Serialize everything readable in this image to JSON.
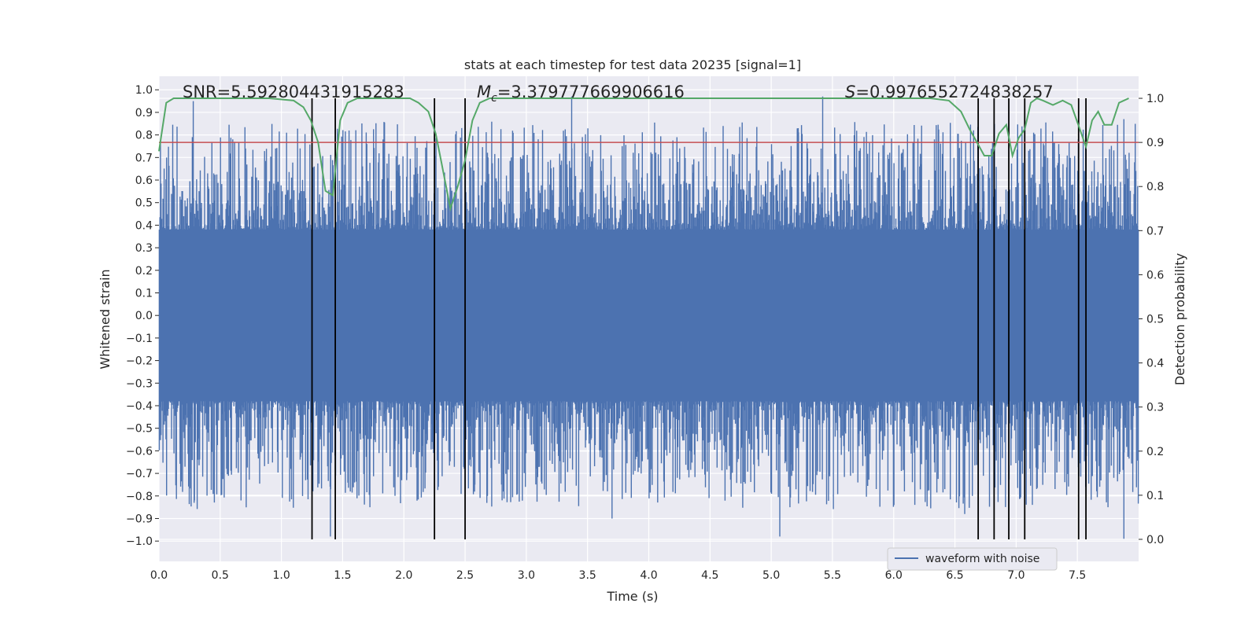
{
  "chart_data": {
    "type": "line",
    "title": "stats at each timestep for test data 20235 [signal=1]",
    "xlabel": "Time (s)",
    "ylabel_left": "Whitened strain",
    "ylabel_right": "Detection probability",
    "xlim": [
      0.0,
      8.0
    ],
    "ylim_left": [
      -1.09,
      1.06
    ],
    "ylim_right": [
      -0.05,
      1.05
    ],
    "x_ticks": [
      "0.0",
      "0.5",
      "1.0",
      "1.5",
      "2.0",
      "2.5",
      "3.0",
      "3.5",
      "4.0",
      "4.5",
      "5.0",
      "5.5",
      "6.0",
      "6.5",
      "7.0",
      "7.5"
    ],
    "y_left_ticks": [
      "1.0",
      "0.9",
      "0.8",
      "0.7",
      "0.6",
      "0.5",
      "0.4",
      "0.3",
      "0.2",
      "0.1",
      "0.0",
      "−0.1",
      "−0.2",
      "−0.3",
      "−0.4",
      "−0.5",
      "−0.6",
      "−0.7",
      "−0.8",
      "−0.9",
      "−1.0"
    ],
    "y_right_ticks": [
      "1.0",
      "0.9",
      "0.8",
      "0.7",
      "0.6",
      "0.5",
      "0.4",
      "0.3",
      "0.2",
      "0.1",
      "0.0"
    ],
    "annotations": {
      "snr": "SNR=5.592804431915283",
      "mc_symbol": "M",
      "mc_sub": "c",
      "mc_value": "=3.379777669906616",
      "s_symbol": "S",
      "s_value": "=0.9976552724838257"
    },
    "legend": [
      "waveform with noise"
    ],
    "threshold": 0.9,
    "event_lines": [
      1.25,
      1.44,
      2.25,
      2.5,
      6.69,
      6.82,
      6.94,
      7.07,
      7.51,
      7.57
    ],
    "detection_probability": {
      "x": [
        0.0,
        0.06,
        0.12,
        0.18,
        0.3,
        0.6,
        0.9,
        1.1,
        1.18,
        1.24,
        1.3,
        1.36,
        1.42,
        1.48,
        1.54,
        1.62,
        1.72,
        1.85,
        2.05,
        2.12,
        2.2,
        2.26,
        2.31,
        2.38,
        2.44,
        2.5,
        2.56,
        2.62,
        2.7,
        2.8,
        3.2,
        3.6,
        4.0,
        4.5,
        5.0,
        5.5,
        6.0,
        6.3,
        6.45,
        6.55,
        6.62,
        6.68,
        6.74,
        6.8,
        6.86,
        6.92,
        6.97,
        7.02,
        7.07,
        7.12,
        7.17,
        7.22,
        7.3,
        7.38,
        7.45,
        7.52,
        7.57,
        7.62,
        7.67,
        7.72,
        7.78,
        7.84,
        7.92
      ],
      "y": [
        0.88,
        0.99,
        1.0,
        1.0,
        1.0,
        1.0,
        1.0,
        0.995,
        0.98,
        0.95,
        0.9,
        0.79,
        0.78,
        0.95,
        0.99,
        1.0,
        1.0,
        1.0,
        1.0,
        0.99,
        0.97,
        0.92,
        0.85,
        0.75,
        0.8,
        0.86,
        0.95,
        0.99,
        1.0,
        1.0,
        1.0,
        1.0,
        1.0,
        1.0,
        1.0,
        1.0,
        1.0,
        1.0,
        0.995,
        0.97,
        0.93,
        0.9,
        0.87,
        0.87,
        0.92,
        0.94,
        0.87,
        0.91,
        0.93,
        0.99,
        1.0,
        0.995,
        0.985,
        0.995,
        0.985,
        0.93,
        0.89,
        0.95,
        0.97,
        0.94,
        0.94,
        0.99,
        1.0
      ]
    },
    "strain": {
      "envelope": 0.38,
      "peak_spikes": [
        [
          0.28,
          0.95
        ],
        [
          1.4,
          -0.98
        ],
        [
          2.58,
          -0.75
        ],
        [
          3.37,
          0.97
        ],
        [
          3.7,
          -0.9
        ],
        [
          4.23,
          0.79
        ],
        [
          5.07,
          -0.98
        ],
        [
          5.42,
          0.97
        ],
        [
          5.22,
          0.83
        ],
        [
          1.83,
          0.78
        ],
        [
          0.29,
          -0.82
        ],
        [
          0.67,
          -0.82
        ],
        [
          7.88,
          -0.99
        ],
        [
          7.88,
          0.87
        ],
        [
          6.58,
          -0.88
        ],
        [
          7.75,
          -0.85
        ]
      ]
    },
    "colors": {
      "background": "#eaeaf2",
      "waveform": "#4c72b0",
      "probability": "#55a868",
      "threshold": "#c44e52",
      "event": "#000000"
    }
  }
}
